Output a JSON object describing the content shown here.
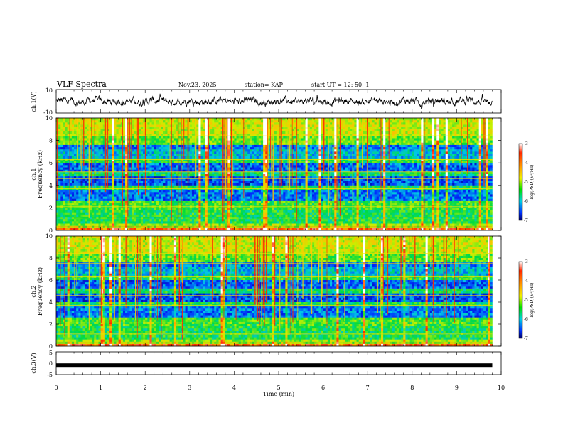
{
  "header": {
    "title": "VLF Spectra",
    "date": "Nov.23, 2025",
    "station": "station= KAP",
    "start": "start  UT  =   12: 50: 1"
  },
  "chart_data": [
    {
      "type": "line",
      "name": "ch1-waveform",
      "ylabel": "ch.1(V)",
      "ylim": [
        -10,
        10
      ],
      "yticks": [
        "10",
        "-10"
      ],
      "xlim": [
        0,
        10
      ],
      "description_series": "noisy voltage trace centred near 0 V, amplitude ~±5 V"
    },
    {
      "type": "heatmap",
      "name": "ch1-spectrogram",
      "ylabel_line1": "ch.1",
      "ylabel_line2": "Frequency (kHz)",
      "ylim": [
        0,
        10
      ],
      "yticks": [
        "0",
        "2",
        "4",
        "6",
        "8",
        "10"
      ],
      "xlim": [
        0,
        9.8
      ],
      "colorbar": {
        "label": "log(PSD)(V²/Hz)",
        "ticks": [
          "-3",
          "-4",
          "-5",
          "-6",
          "-7"
        ],
        "range": [
          -7,
          -3
        ]
      }
    },
    {
      "type": "heatmap",
      "name": "ch2-spectrogram",
      "ylabel_line1": "ch.2",
      "ylabel_line2": "Frequency (kHz)",
      "ylim": [
        0,
        10
      ],
      "yticks": [
        "0",
        "2",
        "4",
        "6",
        "8",
        "10"
      ],
      "xlim": [
        0,
        9.8
      ],
      "colorbar": {
        "label": "log(PSD)(V²/Hz)",
        "ticks": [
          "-3",
          "-4",
          "-5",
          "-6",
          "-7"
        ],
        "range": [
          -7,
          -3
        ]
      }
    },
    {
      "type": "line",
      "name": "ch3-waveform",
      "ylabel": "ch.3(V)",
      "ylim": [
        -5,
        5
      ],
      "yticks": [
        "5",
        "0",
        "-5"
      ],
      "value_level": -1,
      "xlim": [
        0,
        9.8
      ]
    }
  ],
  "xaxis": {
    "label": "Time  (min)",
    "ticks": [
      "0",
      "1",
      "2",
      "3",
      "4",
      "5",
      "6",
      "7",
      "8",
      "9",
      "10"
    ],
    "range": [
      0,
      10
    ]
  }
}
